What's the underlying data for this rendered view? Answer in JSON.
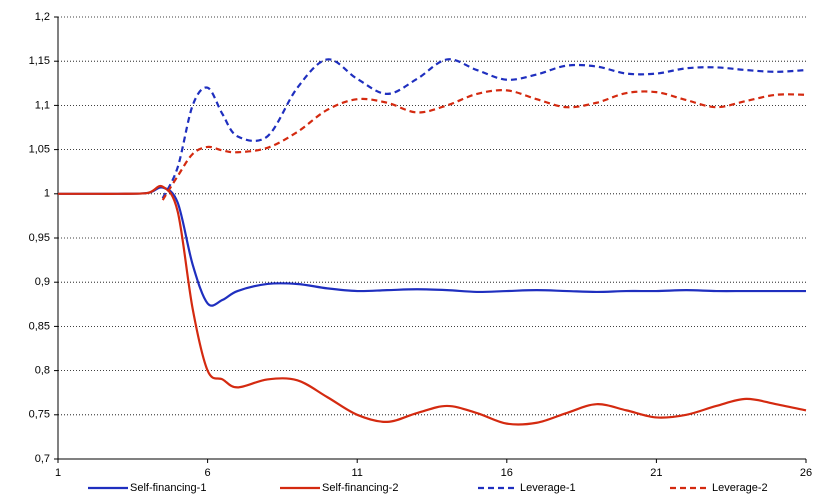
{
  "chart_data": {
    "type": "line",
    "x": [
      1,
      2,
      3,
      4,
      4.5,
      5,
      5.5,
      6,
      6.5,
      7,
      8,
      9,
      10,
      11,
      12,
      13,
      14,
      15,
      16,
      17,
      18,
      19,
      20,
      21,
      22,
      23,
      24,
      25,
      26
    ],
    "series": [
      {
        "name": "Self-financing-1",
        "color": "#1f2fbf",
        "dash": false,
        "values": [
          1,
          1,
          1,
          1.001,
          1.007,
          0.99,
          0.92,
          0.876,
          0.88,
          0.89,
          0.898,
          0.898,
          0.893,
          0.89,
          0.891,
          0.892,
          0.891,
          0.889,
          0.89,
          0.891,
          0.89,
          0.889,
          0.89,
          0.89,
          0.891,
          0.89,
          0.89,
          0.89,
          0.89
        ]
      },
      {
        "name": "Self-financing-2",
        "color": "#d42a10",
        "dash": false,
        "values": [
          1,
          1,
          1,
          1.001,
          1.008,
          0.98,
          0.87,
          0.8,
          0.79,
          0.781,
          0.79,
          0.789,
          0.77,
          0.75,
          0.742,
          0.752,
          0.76,
          0.752,
          0.74,
          0.741,
          0.752,
          0.762,
          0.755,
          0.747,
          0.75,
          0.76,
          0.768,
          0.762,
          0.755
        ]
      },
      {
        "name": "Leverage-1",
        "color": "#1f2fbf",
        "dash": true,
        "values": [
          null,
          null,
          null,
          null,
          0.995,
          1.03,
          1.1,
          1.12,
          1.09,
          1.065,
          1.065,
          1.12,
          1.152,
          1.13,
          1.113,
          1.13,
          1.152,
          1.14,
          1.129,
          1.135,
          1.145,
          1.144,
          1.136,
          1.136,
          1.142,
          1.143,
          1.14,
          1.138,
          1.14
        ]
      },
      {
        "name": "Leverage-2",
        "color": "#d42a10",
        "dash": true,
        "values": [
          null,
          null,
          null,
          null,
          0.993,
          1.02,
          1.045,
          1.053,
          1.049,
          1.047,
          1.052,
          1.07,
          1.095,
          1.107,
          1.103,
          1.092,
          1.1,
          1.113,
          1.117,
          1.107,
          1.098,
          1.103,
          1.114,
          1.115,
          1.106,
          1.098,
          1.105,
          1.112,
          1.112
        ]
      }
    ],
    "xlim": [
      1,
      26
    ],
    "xticks": [
      1,
      6,
      11,
      16,
      21,
      26
    ],
    "ylim": [
      0.7,
      1.2
    ],
    "yticks": [
      {
        "value": 0.7,
        "label": "0,7"
      },
      {
        "value": 0.75,
        "label": "0,75"
      },
      {
        "value": 0.8,
        "label": "0,8"
      },
      {
        "value": 0.85,
        "label": "0,85"
      },
      {
        "value": 0.9,
        "label": "0,9"
      },
      {
        "value": 0.95,
        "label": "0,95"
      },
      1,
      {
        "value": 1.05,
        "label": "1,05"
      },
      {
        "value": 1.1,
        "label": "1,1"
      },
      {
        "value": 1.15,
        "label": "1,15"
      },
      {
        "value": 1.2,
        "label": "1,2"
      }
    ],
    "grid": true,
    "legend": "bottom"
  }
}
